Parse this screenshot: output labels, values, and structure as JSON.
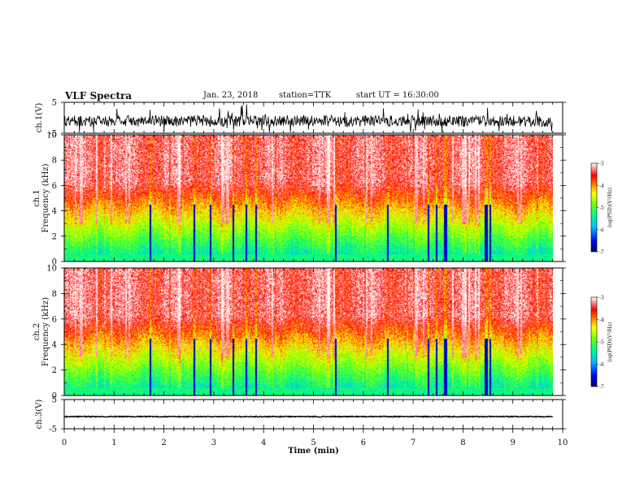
{
  "header": {
    "title": "VLF Spectra",
    "date": "Jan. 23, 2018",
    "station": "station=TTK",
    "start": "start UT =  16:30:00"
  },
  "chart_data": {
    "type": "spectrogram",
    "x": {
      "label": "Time  (min)",
      "range": [
        0,
        10
      ],
      "ticks": [
        "0",
        "1",
        "2",
        "3",
        "4",
        "5",
        "6",
        "7",
        "8",
        "9",
        "10"
      ]
    },
    "panels": [
      {
        "name": "ch1-waveform",
        "type": "line",
        "ylabel": "ch.1(V)",
        "yticks": [
          "5",
          "-5"
        ],
        "ylim": [
          -5,
          5
        ],
        "color": "#000000"
      },
      {
        "name": "ch1-spectrogram",
        "type": "heatmap",
        "ylabel": "ch.1",
        "ylabel2": "Frequency  (kHz)",
        "yticks": [
          "0",
          "2",
          "4",
          "6",
          "8",
          "10"
        ],
        "ylim": [
          0,
          10
        ]
      },
      {
        "name": "ch2-spectrogram",
        "type": "heatmap",
        "ylabel": "ch.2",
        "ylabel2": "Frequency  (kHz)",
        "yticks": [
          "0",
          "2",
          "4",
          "6",
          "8",
          "10"
        ],
        "ylim": [
          0,
          10
        ]
      },
      {
        "name": "ch3-waveform",
        "type": "line",
        "ylabel": "ch.3(V)",
        "yticks": [
          "5",
          "-5"
        ],
        "ylim": [
          -5,
          5
        ],
        "color": "#000000"
      }
    ],
    "colorbar": {
      "label": "log(PSD)(V²/Hz)",
      "ticks": [
        "-3",
        "-4",
        "-5",
        "-6",
        "-7"
      ],
      "range": [
        -7,
        -3
      ],
      "colors": [
        "#000080",
        "#0000ff",
        "#00bfff",
        "#00ff80",
        "#80ff00",
        "#ffff00",
        "#ff8000",
        "#ff0000",
        "#ffffff"
      ]
    }
  }
}
